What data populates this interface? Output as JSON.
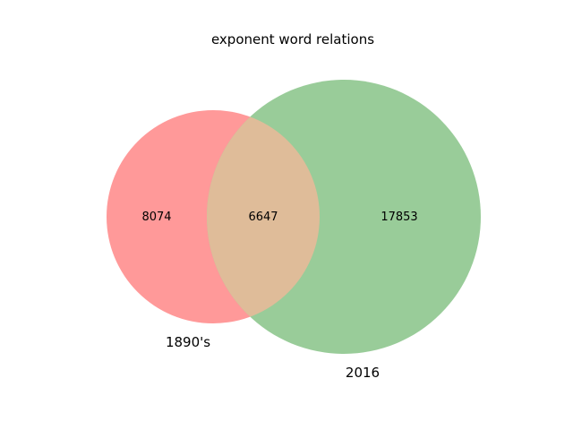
{
  "title": "exponent word relations",
  "sets": [
    {
      "name": "1890's",
      "color": "#ff9999",
      "only_count": "8074"
    },
    {
      "name": "2016",
      "color": "#99cc99",
      "only_count": "17853"
    }
  ],
  "intersection": {
    "count": "6647",
    "color": "#dfbc99"
  }
}
